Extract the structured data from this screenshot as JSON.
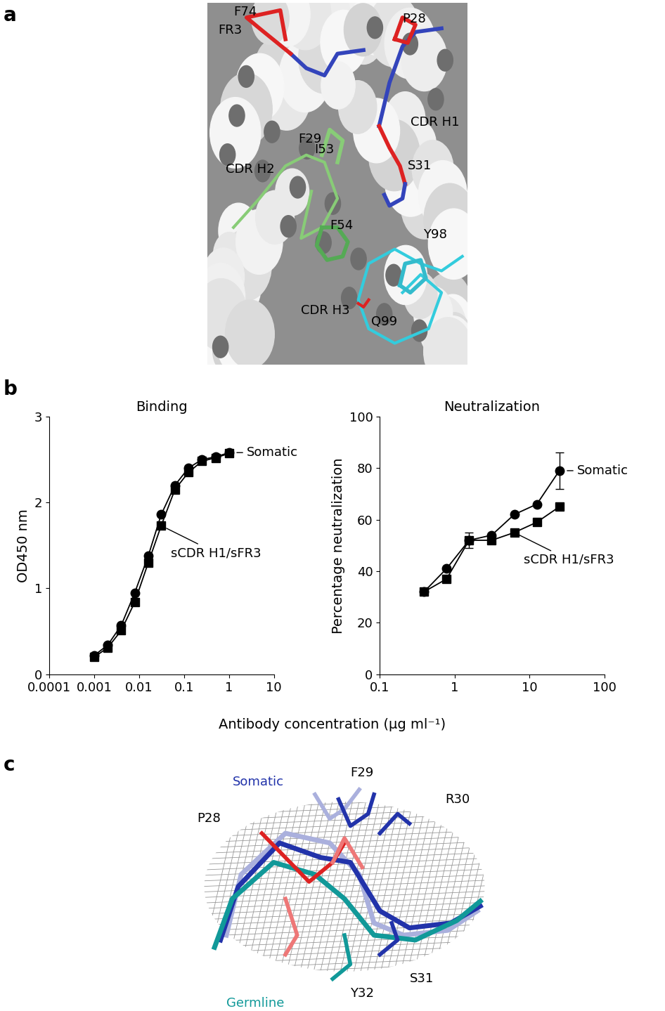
{
  "panels": [
    "a",
    "b",
    "c"
  ],
  "panel_a": {
    "labels": [
      "F74",
      "FR3",
      "P28",
      "F29",
      "CDR H1",
      "S31",
      "CDR H2",
      "I53",
      "F54",
      "Y98",
      "CDR H3",
      "Q99"
    ]
  },
  "chart_data": [
    {
      "type": "line",
      "title": "Binding",
      "ylabel": "OD450 nm",
      "log": "x",
      "x": [
        0.001,
        0.002,
        0.004,
        0.008,
        0.016,
        0.031,
        0.0625,
        0.125,
        0.25,
        0.5,
        1
      ],
      "xlim": [
        0.0001,
        10
      ],
      "xticks": [
        0.0001,
        0.001,
        0.01,
        0.1,
        1,
        10
      ],
      "ylim": [
        0,
        3
      ],
      "yticks": [
        0,
        1,
        2,
        3
      ],
      "series": [
        {
          "name": "Somatic",
          "color": "#000000",
          "marker": "circle",
          "line_style": "solid",
          "values": [
            0.22,
            0.34,
            0.57,
            0.95,
            1.38,
            1.86,
            2.2,
            2.4,
            2.5,
            2.53,
            2.58
          ]
        },
        {
          "name": "sCDR H1/sFR3",
          "color": "#000000",
          "marker": "square",
          "line_style": "solid",
          "values": [
            0.2,
            0.31,
            0.51,
            0.84,
            1.3,
            1.73,
            2.15,
            2.35,
            2.48,
            2.52,
            2.57
          ]
        }
      ]
    },
    {
      "type": "line",
      "title": "Neutralization",
      "ylabel": "Percentage neutralization",
      "log": "x",
      "x": [
        0.39,
        0.78,
        1.56,
        3.125,
        6.25,
        12.5,
        25
      ],
      "xlim": [
        0.1,
        100
      ],
      "xticks": [
        0.1,
        1,
        10,
        100
      ],
      "ylim": [
        0,
        100
      ],
      "yticks": [
        0,
        20,
        40,
        60,
        80,
        100
      ],
      "series": [
        {
          "name": "Somatic",
          "color": "#000000",
          "marker": "circle",
          "line_style": "solid",
          "values": [
            32,
            41,
            52,
            54,
            62,
            66,
            79
          ],
          "errors": [
            null,
            null,
            3,
            null,
            null,
            null,
            7
          ]
        },
        {
          "name": "sCDR H1/sFR3",
          "color": "#000000",
          "marker": "square",
          "line_style": "solid",
          "values": [
            32,
            37,
            52,
            52,
            55,
            59,
            65
          ]
        }
      ]
    }
  ],
  "xlabel": "Antibody concentration (μg ml⁻¹)",
  "panel_c": {
    "labels": [
      "Somatic",
      "F29",
      "P28",
      "R30",
      "S31",
      "Y32",
      "Germline"
    ]
  }
}
